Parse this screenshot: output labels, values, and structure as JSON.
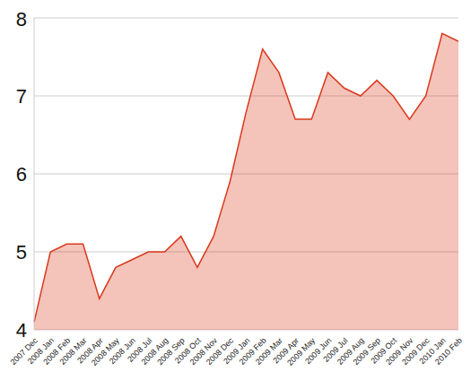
{
  "chart_data": {
    "type": "area",
    "categories": [
      "2007 Dec",
      "2008 Jan",
      "2008 Feb",
      "2008 Mar",
      "2008 Apr",
      "2008 May",
      "2008 Jun",
      "2008 Jul",
      "2008 Aug",
      "2008 Sep",
      "2008 Oct",
      "2008 Nov",
      "2008 Dec",
      "2009 Jan",
      "2009 Feb",
      "2009 Mar",
      "2009 Apr",
      "2009 May",
      "2009 Jun",
      "2009 Jul",
      "2009 Aug",
      "2009 Sep",
      "2009 Oct",
      "2009 Nov",
      "2009 Dec",
      "2010 Jan",
      "2010 Feb"
    ],
    "values": [
      4.1,
      5.0,
      5.1,
      5.1,
      4.4,
      4.8,
      4.9,
      5.0,
      5.0,
      5.2,
      4.8,
      5.2,
      5.9,
      6.8,
      7.6,
      7.3,
      6.7,
      6.7,
      7.3,
      7.1,
      7.0,
      7.2,
      7.0,
      6.7,
      7.0,
      7.8,
      7.7
    ],
    "color": "#d9391c",
    "ylim": [
      4,
      8
    ],
    "yticks": [
      4,
      5,
      6,
      7,
      8
    ],
    "grid": true
  }
}
